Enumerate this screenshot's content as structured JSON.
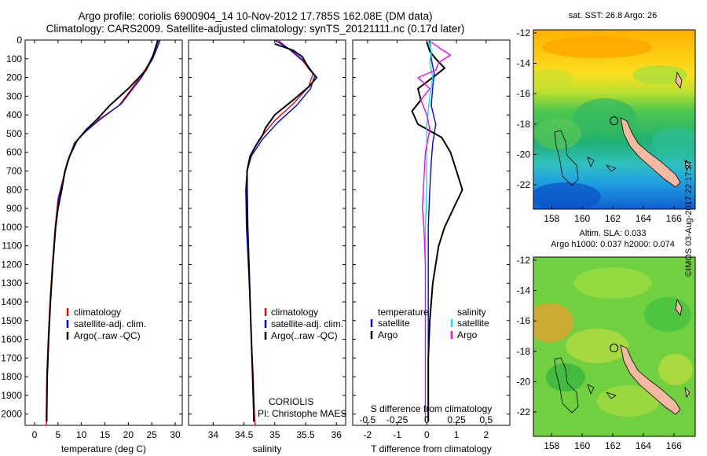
{
  "header": {
    "line1": "Argo profile: coriolis 6900904_14 10-Nov-2012 17.785S 162.08E (DM data)",
    "line2": "Climatology: CARS2009. Satellite-adjusted climatology: synTS_20121111.nc (0.17d later)"
  },
  "colors": {
    "climatology": "#ff0000",
    "satellite": "#0000ff",
    "argo": "#000000",
    "s_satellite": "#00e5ee",
    "s_argo": "#ff00ff"
  },
  "depth_axis": {
    "ticks": [
      0,
      100,
      200,
      300,
      400,
      500,
      600,
      700,
      800,
      900,
      1000,
      1100,
      1200,
      1300,
      1400,
      1500,
      1600,
      1700,
      1800,
      1900,
      2000
    ],
    "range": [
      0,
      2060
    ]
  },
  "chart_data": [
    {
      "type": "line",
      "id": "temperature",
      "xlabel": "temperature (deg C)",
      "xlim": [
        -2,
        31.5
      ],
      "xticks": [
        "0",
        "5",
        "10",
        "15",
        "20",
        "25",
        "30"
      ],
      "xtick_values": [
        0,
        5,
        10,
        15,
        20,
        25,
        30
      ],
      "legend": [
        "climatology",
        "satellite-adj. clim.",
        "Argo(..raw -QC)"
      ],
      "series": [
        {
          "name": "climatology",
          "color": "#ff0000",
          "width": 1.4,
          "points": [
            [
              26.5,
              0
            ],
            [
              25,
              100
            ],
            [
              22.5,
              200
            ],
            [
              18,
              350
            ],
            [
              14,
              420
            ],
            [
              10.5,
              500
            ],
            [
              8.5,
              550
            ],
            [
              7,
              650
            ],
            [
              6,
              750
            ],
            [
              5,
              850
            ],
            [
              4.4,
              1000
            ],
            [
              3.8,
              1200
            ],
            [
              3.3,
              1400
            ],
            [
              2.9,
              1600
            ],
            [
              2.6,
              1800
            ],
            [
              2.5,
              2000
            ],
            [
              2.5,
              2060
            ]
          ]
        },
        {
          "name": "satellite",
          "color": "#0000ff",
          "width": 1.4,
          "points": [
            [
              26.8,
              0
            ],
            [
              25.2,
              100
            ],
            [
              22.8,
              200
            ],
            [
              18.5,
              340
            ],
            [
              14.2,
              420
            ],
            [
              10.8,
              490
            ],
            [
              8.6,
              550
            ],
            [
              7.1,
              650
            ],
            [
              6.1,
              750
            ],
            [
              5.1,
              850
            ],
            [
              4.5,
              1000
            ],
            [
              3.9,
              1200
            ],
            [
              3.4,
              1400
            ],
            [
              3,
              1600
            ],
            [
              2.7,
              1800
            ],
            [
              2.6,
              2000
            ],
            [
              2.6,
              2040
            ]
          ]
        },
        {
          "name": "argo",
          "color": "#000000",
          "width": 2,
          "points": [
            [
              26.3,
              0
            ],
            [
              25.3,
              80
            ],
            [
              23.8,
              160
            ],
            [
              20,
              260
            ],
            [
              16,
              350
            ],
            [
              13.5,
              420
            ],
            [
              11,
              480
            ],
            [
              9,
              540
            ],
            [
              7.5,
              620
            ],
            [
              6.5,
              700
            ],
            [
              5.8,
              800
            ],
            [
              5,
              900
            ],
            [
              4.5,
              1000
            ],
            [
              3.9,
              1200
            ],
            [
              3.4,
              1400
            ],
            [
              3,
              1600
            ],
            [
              2.7,
              1800
            ],
            [
              2.6,
              2000
            ],
            [
              2.6,
              2040
            ]
          ]
        }
      ]
    },
    {
      "type": "line",
      "id": "salinity",
      "xlabel": "salinity",
      "xlim": [
        33.6,
        36.15
      ],
      "xticks": [
        "34",
        "34.5",
        "35",
        "35.5",
        "36"
      ],
      "xtick_values": [
        34,
        34.5,
        35,
        35.5,
        36
      ],
      "legend": [
        "climatology",
        "satellite-adj. clim.",
        "Argo(..raw -QC)"
      ],
      "series": [
        {
          "name": "climatology",
          "color": "#ff0000",
          "width": 1.4,
          "points": [
            [
              35.05,
              0
            ],
            [
              35.2,
              40
            ],
            [
              35.45,
              110
            ],
            [
              35.62,
              180
            ],
            [
              35.55,
              250
            ],
            [
              35.3,
              340
            ],
            [
              35,
              430
            ],
            [
              34.75,
              530
            ],
            [
              34.6,
              620
            ],
            [
              34.55,
              700
            ],
            [
              34.53,
              800
            ],
            [
              34.55,
              1000
            ],
            [
              34.58,
              1200
            ],
            [
              34.6,
              1400
            ],
            [
              34.62,
              1600
            ],
            [
              34.65,
              1800
            ],
            [
              34.67,
              2000
            ],
            [
              34.68,
              2060
            ]
          ]
        },
        {
          "name": "satellite",
          "color": "#0000ff",
          "width": 1.4,
          "points": [
            [
              35,
              0
            ],
            [
              35.25,
              50
            ],
            [
              35.5,
              120
            ],
            [
              35.65,
              190
            ],
            [
              35.58,
              260
            ],
            [
              35.35,
              350
            ],
            [
              35.05,
              440
            ],
            [
              34.8,
              530
            ],
            [
              34.62,
              620
            ],
            [
              34.55,
              700
            ],
            [
              34.53,
              800
            ],
            [
              34.54,
              1000
            ],
            [
              34.57,
              1200
            ],
            [
              34.6,
              1400
            ],
            [
              34.62,
              1600
            ],
            [
              34.64,
              1800
            ],
            [
              34.66,
              2000
            ],
            [
              34.66,
              2040
            ]
          ]
        },
        {
          "name": "argo",
          "color": "#000000",
          "width": 2,
          "points": [
            [
              35,
              20
            ],
            [
              35.3,
              55
            ],
            [
              35.45,
              90
            ],
            [
              35.55,
              150
            ],
            [
              35.68,
              200
            ],
            [
              35.55,
              250
            ],
            [
              35.3,
              320
            ],
            [
              35,
              400
            ],
            [
              34.85,
              470
            ],
            [
              34.8,
              510
            ],
            [
              34.7,
              560
            ],
            [
              34.6,
              620
            ],
            [
              34.55,
              700
            ],
            [
              34.55,
              800
            ],
            [
              34.56,
              1000
            ],
            [
              34.58,
              1200
            ],
            [
              34.6,
              1400
            ],
            [
              34.62,
              1600
            ],
            [
              34.64,
              1800
            ],
            [
              34.66,
              2000
            ],
            [
              34.66,
              2040
            ]
          ]
        }
      ]
    },
    {
      "type": "line",
      "id": "difference",
      "xlabel": "T difference from climatology",
      "xlabel_top": "S difference from climatology",
      "xlim": [
        -2.5,
        2.8
      ],
      "xticks": [
        "-2",
        "-1",
        "0",
        "1",
        "2"
      ],
      "xtick_values": [
        -2,
        -1,
        0,
        1,
        2
      ],
      "xticks_top": [
        "-0.5",
        "-0.25",
        "0",
        "0.25",
        "0.5"
      ],
      "xticks_top_values": [
        -2,
        -1,
        0,
        1,
        2
      ],
      "legend": {
        "temperature_title": "temperature",
        "salinity_title": "salinity",
        "satellite": "satellite",
        "argo": "Argo"
      },
      "series": [
        {
          "name": "T satellite",
          "color": "#0000ff",
          "width": 1.4,
          "points": [
            [
              0.1,
              0
            ],
            [
              0.15,
              100
            ],
            [
              0.25,
              180
            ],
            [
              0.2,
              250
            ],
            [
              0.15,
              350
            ],
            [
              0.3,
              450
            ],
            [
              0.2,
              550
            ],
            [
              0.15,
              650
            ],
            [
              0.1,
              800
            ],
            [
              0.05,
              1000
            ],
            [
              0.05,
              1200
            ],
            [
              0.05,
              1400
            ],
            [
              0.05,
              1600
            ],
            [
              0.05,
              2000
            ],
            [
              0.05,
              2040
            ]
          ]
        },
        {
          "name": "T argo",
          "color": "#000000",
          "width": 2,
          "points": [
            [
              0,
              10
            ],
            [
              0.1,
              60
            ],
            [
              0.3,
              100
            ],
            [
              0.6,
              150
            ],
            [
              0.2,
              200
            ],
            [
              -0.3,
              260
            ],
            [
              -0.2,
              320
            ],
            [
              -0.5,
              380
            ],
            [
              -0.3,
              450
            ],
            [
              0.5,
              520
            ],
            [
              0.8,
              600
            ],
            [
              1,
              700
            ],
            [
              1.2,
              800
            ],
            [
              0.9,
              900
            ],
            [
              0.6,
              1000
            ],
            [
              0.4,
              1100
            ],
            [
              0.2,
              1300
            ],
            [
              0.1,
              1500
            ],
            [
              0.05,
              1700
            ],
            [
              0.05,
              2000
            ],
            [
              0.05,
              2040
            ]
          ]
        },
        {
          "name": "S satellite",
          "color": "#00e5ee",
          "width": 1.4,
          "points": [
            [
              0.05,
              0
            ],
            [
              0.15,
              60
            ],
            [
              0.1,
              120
            ],
            [
              0.2,
              200
            ],
            [
              0.1,
              300
            ],
            [
              0,
              450
            ],
            [
              0,
              600
            ],
            [
              0,
              800
            ],
            [
              -0.05,
              1000
            ],
            [
              -0.05,
              1400
            ],
            [
              -0.05,
              2000
            ],
            [
              -0.05,
              2040
            ]
          ]
        },
        {
          "name": "S argo",
          "color": "#ff00ff",
          "width": 1.4,
          "points": [
            [
              0.15,
              10
            ],
            [
              0.5,
              50
            ],
            [
              0.8,
              80
            ],
            [
              0.4,
              120
            ],
            [
              0.3,
              160
            ],
            [
              -0.3,
              200
            ],
            [
              0.1,
              260
            ],
            [
              -0.2,
              320
            ],
            [
              0,
              400
            ],
            [
              0.1,
              480
            ],
            [
              -0.05,
              600
            ],
            [
              -0.1,
              750
            ],
            [
              -0.15,
              900
            ],
            [
              -0.1,
              1000
            ],
            [
              -0.05,
              1200
            ],
            [
              -0.05,
              1500
            ],
            [
              -0.05,
              2000
            ],
            [
              -0.05,
              2040
            ]
          ]
        }
      ]
    }
  ],
  "panel2_info": {
    "line1": "CORIOLIS",
    "line2": "PI: Christophe MAES"
  },
  "maps": {
    "sst": {
      "title": "sat. SST: 26.8 Argo: 26"
    },
    "sla": {
      "title1": "Altim. SLA: 0.033",
      "title2": "Argo h1000: 0.037 h2000: 0.074"
    },
    "xticks": [
      "158",
      "160",
      "162",
      "164",
      "166"
    ],
    "xtick_values": [
      158,
      160,
      162,
      164,
      166
    ],
    "yticks": [
      "-12",
      "-14",
      "-16",
      "-18",
      "-20",
      "-22"
    ],
    "ytick_values": [
      -12,
      -14,
      -16,
      -18,
      -20,
      -22
    ],
    "lon_range": [
      156.8,
      167.4
    ],
    "lat_range": [
      -11.8,
      -23.6
    ],
    "profile_location": {
      "lon": 162.08,
      "lat": -17.785
    }
  },
  "sidebar_text": "©IMOS 03-Aug-2017 22:17:27"
}
